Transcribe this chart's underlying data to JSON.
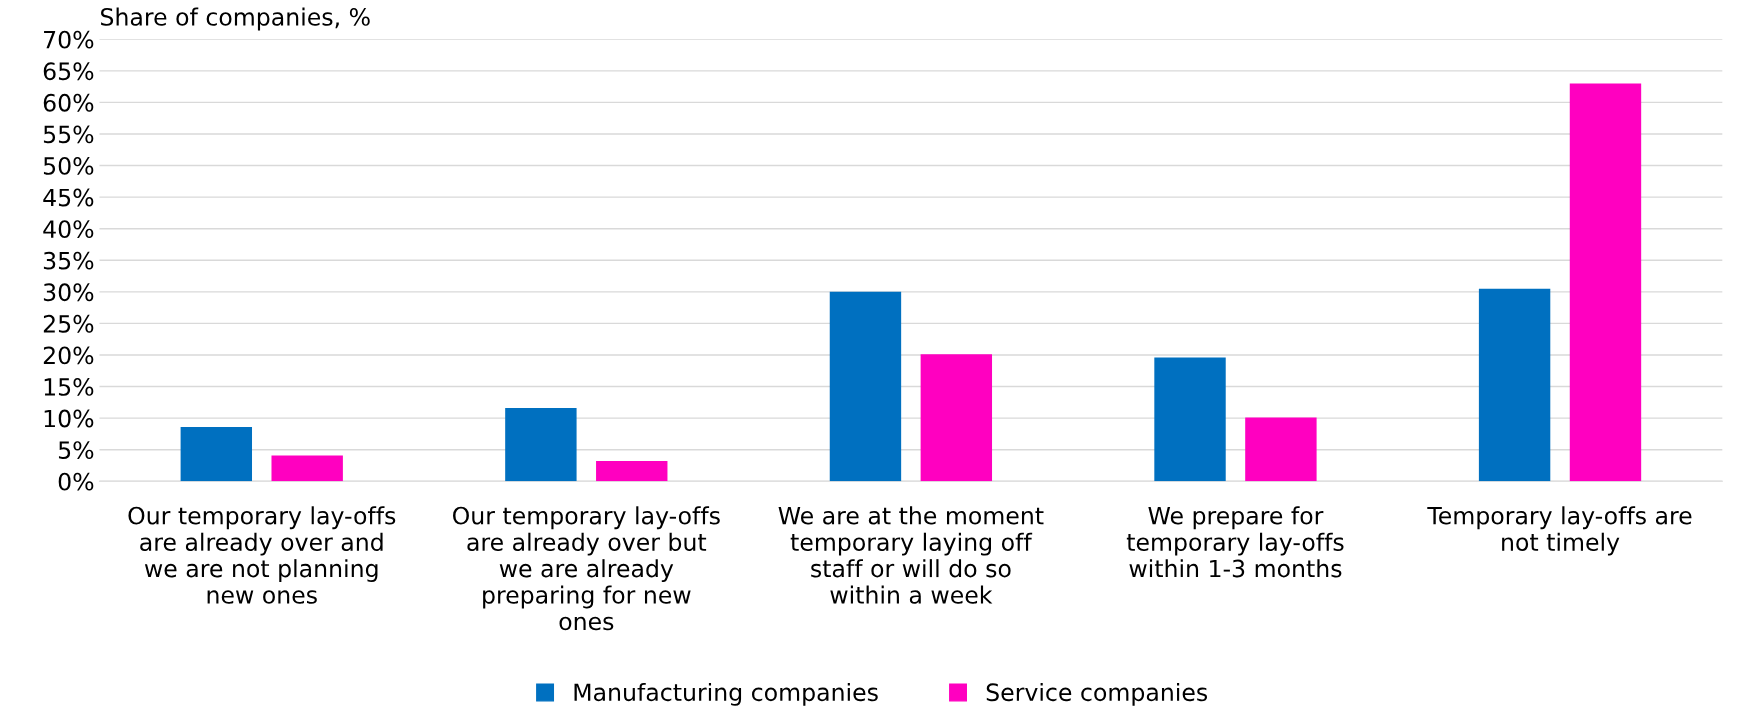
{
  "chart_data": {
    "type": "bar",
    "ylabel": "Share of companies, %",
    "categories": [
      "Our temporary lay-offs\nare already over and\nwe are not planning\nnew ones",
      "Our temporary lay-offs\nare already over but\nwe are already\npreparing for new\nones",
      "We are at the moment\ntemporary laying off\nstaff or will do so\nwithin a week",
      "We prepare for\ntemporary lay-offs\nwithin 1-3 months",
      "Temporary lay-offs are\nnot timely"
    ],
    "series": [
      {
        "name": "Manufacturing companies",
        "color": "#0070c0",
        "values": [
          8.6,
          11.6,
          30.0,
          19.6,
          30.5
        ]
      },
      {
        "name": "Service companies",
        "color": "#ff00c0",
        "values": [
          4.1,
          3.2,
          20.1,
          10.1,
          63.0
        ]
      }
    ],
    "ylim": [
      0,
      70
    ],
    "yticks": [
      {
        "value": 0,
        "label": "0%"
      },
      {
        "value": 5,
        "label": "5%"
      },
      {
        "value": 10,
        "label": "10%"
      },
      {
        "value": 15,
        "label": "15%"
      },
      {
        "value": 20,
        "label": "20%"
      },
      {
        "value": 25,
        "label": "25%"
      },
      {
        "value": 30,
        "label": "30%"
      },
      {
        "value": 35,
        "label": "35%"
      },
      {
        "value": 40,
        "label": "40%"
      },
      {
        "value": 45,
        "label": "45%"
      },
      {
        "value": 50,
        "label": "50%"
      },
      {
        "value": 55,
        "label": "55%"
      },
      {
        "value": 60,
        "label": "60%"
      },
      {
        "value": 65,
        "label": "65%"
      },
      {
        "value": 70,
        "label": "70%"
      }
    ],
    "grid": "y",
    "legend": "bottom"
  }
}
